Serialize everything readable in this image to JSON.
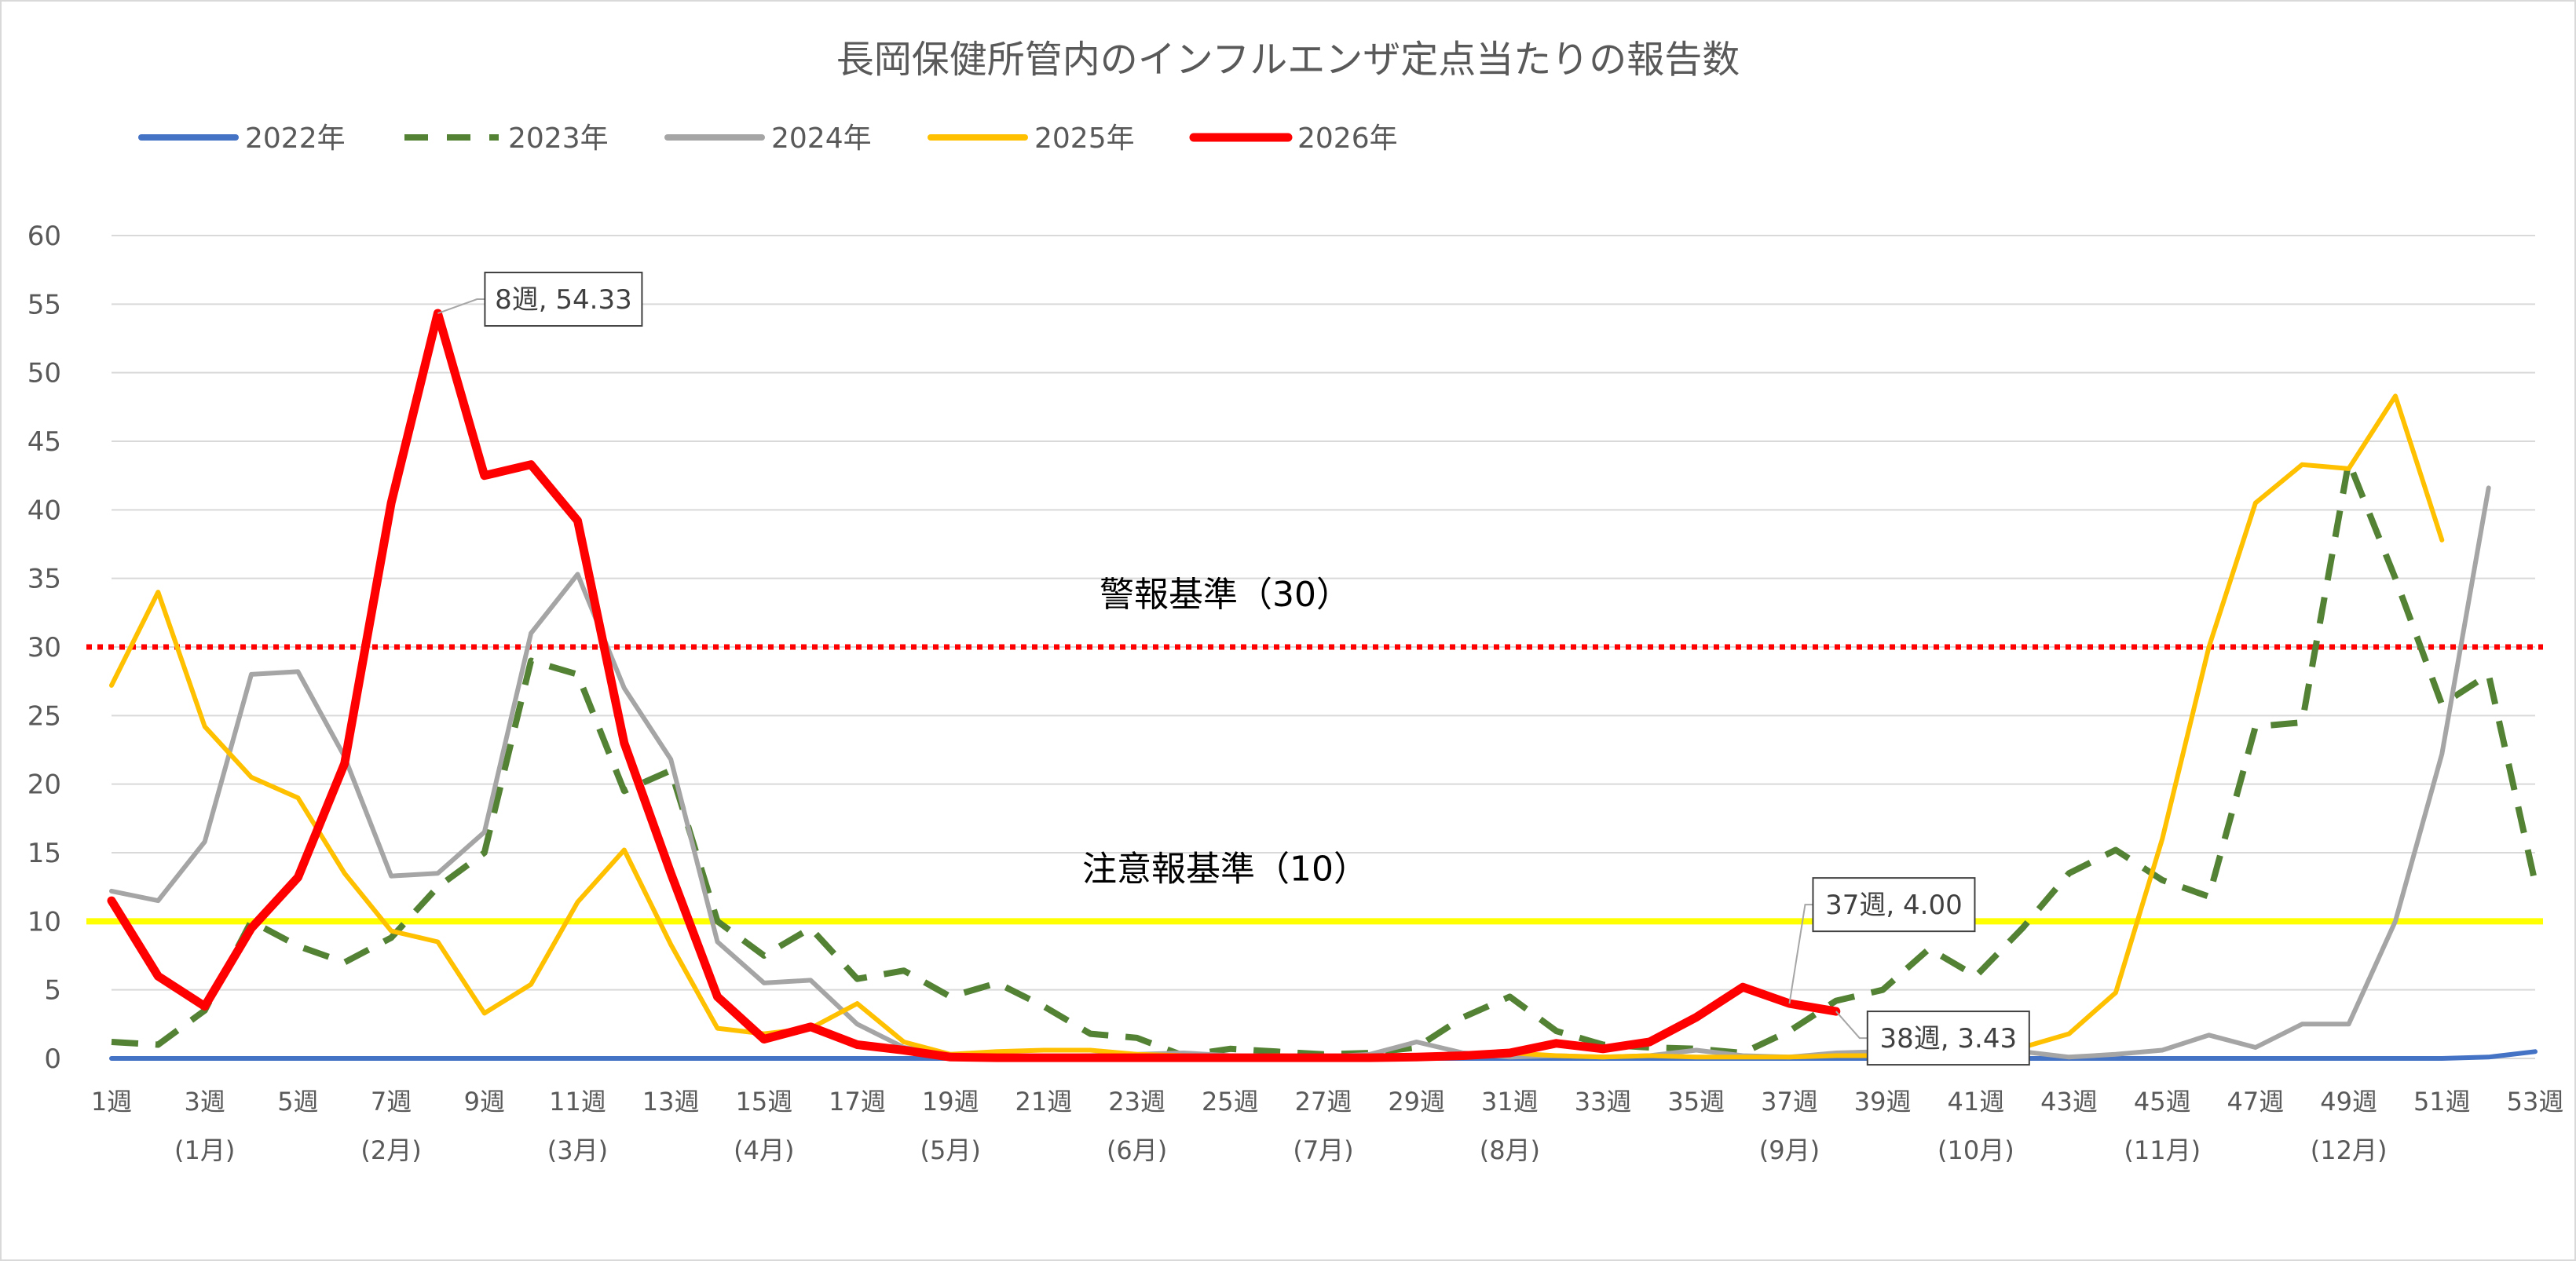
{
  "chart_data": {
    "type": "line",
    "title": "長岡保健所管内のインフルエンザ定点当たりの報告数",
    "xlabel": "",
    "ylabel": "",
    "ylim": [
      0,
      60
    ],
    "yticks": [
      "0",
      "5",
      "10",
      "15",
      "20",
      "25",
      "30",
      "35",
      "40",
      "45",
      "50",
      "55",
      "60"
    ],
    "xlim": [
      1,
      53
    ],
    "xtick_labels": [
      "1週",
      "3週",
      "5週",
      "7週",
      "9週",
      "11週",
      "13週",
      "15週",
      "17週",
      "19週",
      "21週",
      "23週",
      "25週",
      "27週",
      "29週",
      "31週",
      "33週",
      "35週",
      "37週",
      "39週",
      "41週",
      "43週",
      "45週",
      "47週",
      "49週",
      "51週",
      "53週"
    ],
    "month_labels": [
      {
        "week": 3,
        "label": "(1月)"
      },
      {
        "week": 7,
        "label": "(2月)"
      },
      {
        "week": 11,
        "label": "(3月)"
      },
      {
        "week": 15,
        "label": "(4月)"
      },
      {
        "week": 19,
        "label": "(5月)"
      },
      {
        "week": 23,
        "label": "(6月)"
      },
      {
        "week": 27,
        "label": "(7月)"
      },
      {
        "week": 31,
        "label": "(8月)"
      },
      {
        "week": 37,
        "label": "(9月)"
      },
      {
        "week": 41,
        "label": "(10月)"
      },
      {
        "week": 45,
        "label": "(11月)"
      },
      {
        "week": 49,
        "label": "(12月)"
      }
    ],
    "grid": true,
    "legend_position": "top-left",
    "series": [
      {
        "name": "2022年",
        "color": "#4472C4",
        "dash": "solid",
        "values": [
          0,
          0,
          0,
          0,
          0,
          0,
          0,
          0,
          0,
          0,
          0,
          0,
          0,
          0,
          0,
          0,
          0,
          0,
          0,
          0,
          0,
          0,
          0,
          0,
          0,
          0,
          0,
          0,
          0,
          0,
          0,
          0,
          0,
          0,
          0,
          0,
          0,
          0,
          0,
          0,
          0,
          0,
          0,
          0,
          0,
          0,
          0,
          0,
          0,
          0,
          0,
          0.1,
          0.5
        ]
      },
      {
        "name": "2023年",
        "color": "#548235",
        "dash": "dashed",
        "values": [
          1.2,
          1.0,
          3.5,
          10.0,
          8.2,
          7.0,
          8.8,
          12.5,
          15.0,
          29.0,
          28.0,
          19.5,
          21.0,
          10.0,
          7.5,
          9.5,
          5.8,
          6.4,
          4.5,
          5.5,
          3.8,
          1.8,
          1.5,
          0.2,
          0.7,
          0.5,
          0.3,
          0.4,
          0.8,
          3.0,
          4.5,
          2.0,
          1.0,
          0.8,
          0.7,
          0.4,
          2.0,
          4.2,
          5.0,
          8.0,
          6.0,
          9.5,
          13.5,
          15.2,
          13.0,
          11.8,
          24.2,
          24.5,
          43.5,
          35.0,
          25.8,
          28.0,
          12.8
        ]
      },
      {
        "name": "2024年",
        "color": "#A5A5A5",
        "dash": "solid",
        "values": [
          12.2,
          11.5,
          15.8,
          28.0,
          28.2,
          22.0,
          13.3,
          13.5,
          16.5,
          31.0,
          35.3,
          27.0,
          21.8,
          8.5,
          5.5,
          5.7,
          2.5,
          0.8,
          0.3,
          0.1,
          0.1,
          0.2,
          0.3,
          0.4,
          0.2,
          0.1,
          0.1,
          0.3,
          1.2,
          0.4,
          0.1,
          0.2,
          0.1,
          0.2,
          0.6,
          0.2,
          0.1,
          0.4,
          0.5,
          1.0,
          1.5,
          0.5,
          0.1,
          0.3,
          0.6,
          1.7,
          0.8,
          2.5,
          2.5,
          10.0,
          22.2,
          41.6
        ]
      },
      {
        "name": "2025年",
        "color": "#FFC000",
        "dash": "solid",
        "values": [
          27.2,
          34.0,
          24.2,
          20.5,
          19.0,
          13.5,
          9.3,
          8.5,
          3.3,
          5.4,
          11.4,
          15.2,
          8.3,
          2.2,
          1.8,
          2.2,
          4.0,
          1.2,
          0.3,
          0.5,
          0.6,
          0.6,
          0.3,
          0.2,
          0.1,
          0.2,
          0.1,
          0.2,
          0.1,
          0.2,
          0.4,
          0.2,
          0.1,
          0.2,
          0.1,
          0.1,
          0.1,
          0.2,
          0.2,
          0.8,
          0.4,
          0.8,
          1.8,
          4.8,
          16.0,
          30.0,
          40.5,
          43.3,
          43.0,
          48.3,
          37.8
        ]
      },
      {
        "name": "2026年",
        "color": "#FF0000",
        "dash": "solid",
        "values": [
          11.5,
          6.0,
          3.8,
          9.5,
          13.2,
          21.5,
          40.5,
          54.33,
          42.5,
          43.3,
          39.2,
          23.0,
          13.5,
          4.5,
          1.4,
          2.3,
          1.0,
          0.6,
          0.1,
          0.05,
          0.05,
          0.05,
          0.05,
          0.05,
          0.05,
          0.05,
          0.05,
          0.05,
          0.1,
          0.2,
          0.4,
          1.1,
          0.7,
          1.2,
          3.0,
          5.2,
          4.0,
          3.43
        ]
      }
    ],
    "reference_lines": [
      {
        "value": 30,
        "label": "警報基準（30）",
        "color": "#FF0000",
        "style": "dotted"
      },
      {
        "value": 10,
        "label": "注意報基準（10）",
        "color": "#FFFF00",
        "style": "solid"
      }
    ],
    "annotations": [
      {
        "text": "8週, 54.33",
        "week": 8,
        "value": 54.33,
        "series": "2026年"
      },
      {
        "text": "37週, 4.00",
        "week": 37,
        "value": 4.0,
        "series": "2026年"
      },
      {
        "text": "38週, 3.43",
        "week": 38,
        "value": 3.43,
        "series": "2026年"
      }
    ]
  }
}
